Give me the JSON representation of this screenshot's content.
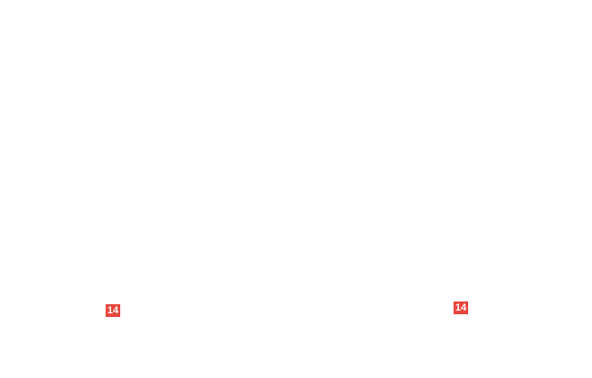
{
  "badge_color": "#e8453c",
  "badges": [
    {
      "label": "14"
    },
    {
      "label": "14"
    }
  ]
}
